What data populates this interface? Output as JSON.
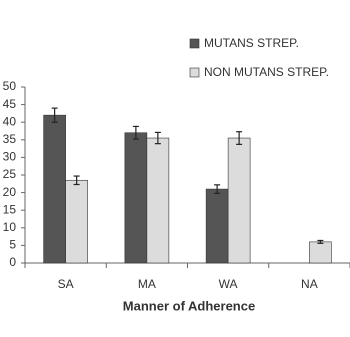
{
  "chart_data": {
    "type": "bar",
    "x_label": "Manner of Adherence",
    "categories": [
      "SA",
      "MA",
      "WA",
      "NA"
    ],
    "series": [
      {
        "name": "MUTANS STREP.",
        "color": "#555555",
        "values": [
          42,
          37,
          21,
          null
        ],
        "errors": [
          2,
          1.8,
          1.2,
          null
        ]
      },
      {
        "name": "NON MUTANS STREP.",
        "color": "#dcdcdc",
        "values": [
          23.5,
          35.5,
          35.5,
          6
        ],
        "errors": [
          1.2,
          1.6,
          1.8,
          0.4
        ]
      }
    ],
    "ylim": [
      0,
      50
    ],
    "yticks": [
      0,
      5,
      10,
      15,
      20,
      25,
      30,
      35,
      40,
      45,
      50
    ],
    "grid": false,
    "legend": "top-right"
  }
}
